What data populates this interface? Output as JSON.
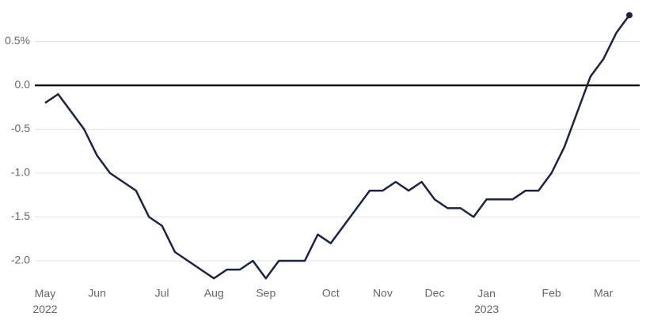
{
  "chart_data": {
    "type": "line",
    "categories": [
      "May 2022",
      null,
      null,
      null,
      "Jun",
      null,
      null,
      null,
      null,
      "Jul",
      null,
      null,
      null,
      "Aug",
      null,
      null,
      null,
      "Sep",
      null,
      null,
      null,
      null,
      "Oct",
      null,
      null,
      null,
      "Nov",
      null,
      null,
      null,
      "Dec",
      null,
      null,
      null,
      "Jan 2023",
      null,
      null,
      null,
      null,
      "Feb",
      null,
      null,
      null,
      "Mar",
      null,
      null
    ],
    "series": [
      {
        "color": "#1b2442",
        "values": [
          -0.2,
          -0.1,
          -0.3,
          -0.5,
          -0.8,
          -1.0,
          -1.1,
          -1.2,
          -1.5,
          -1.6,
          -1.9,
          -2.0,
          -2.1,
          -2.2,
          -2.1,
          -2.1,
          -2.0,
          -2.2,
          -2.0,
          -2.0,
          -2.0,
          -1.7,
          -1.8,
          -1.6,
          -1.4,
          -1.2,
          -1.2,
          -1.1,
          -1.2,
          -1.1,
          -1.3,
          -1.4,
          -1.4,
          -1.5,
          -1.3,
          -1.3,
          -1.3,
          -1.2,
          -1.2,
          -1.0,
          -0.7,
          -0.3,
          0.1,
          0.3,
          0.6,
          0.8
        ]
      }
    ],
    "ylim": [
      -2.35,
      0.85
    ],
    "yticks": [
      {
        "value": 0.5,
        "label": "0.5%"
      },
      {
        "value": 0,
        "label": "0.0"
      },
      -0.5,
      {
        "value": -1,
        "label": "-1.0"
      },
      -1.5,
      {
        "value": -2,
        "label": "-2.0"
      }
    ],
    "grid": true
  }
}
